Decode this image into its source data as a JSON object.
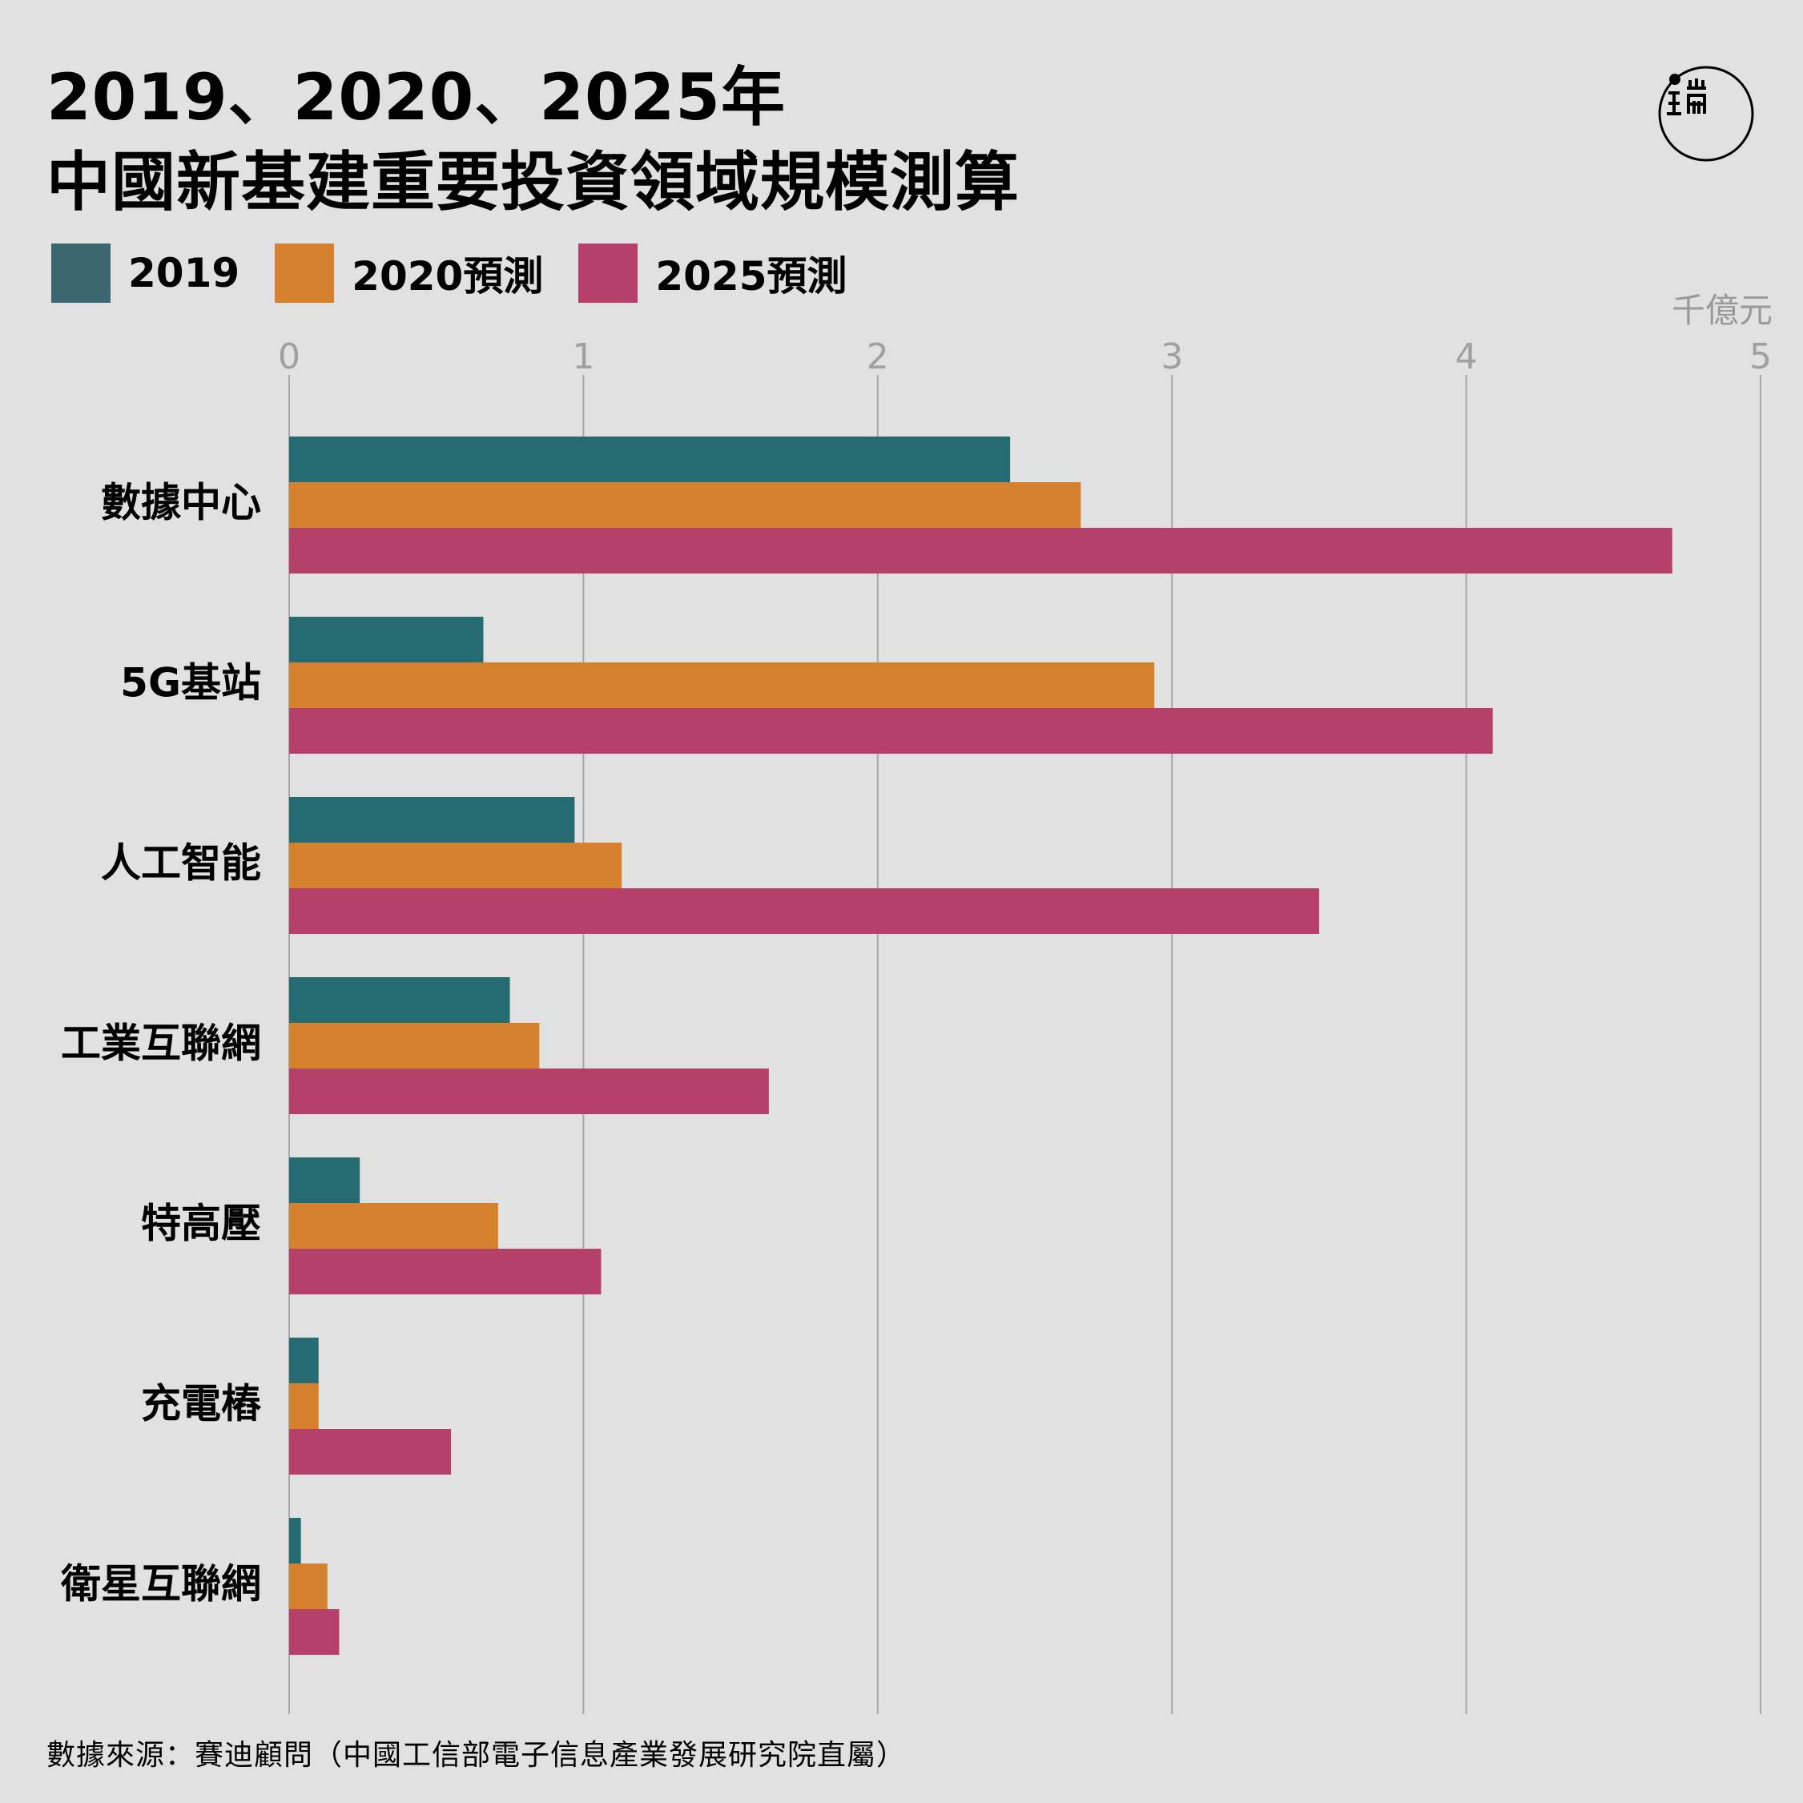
{
  "title": {
    "line1": "2019、2020、2025年",
    "line2": "中國新基建重要投資領域規模測算"
  },
  "unit": "千億元",
  "source": "數據來源：賽迪顧問（中國工信部電子信息產業發展研究院直屬）",
  "logo": {
    "name": "端"
  },
  "chart_data": {
    "type": "bar",
    "orientation": "horizontal",
    "categories": [
      "數據中心",
      "5G基站",
      "人工智能",
      "工業互聯網",
      "特高壓",
      "充電樁",
      "衛星互聯網"
    ],
    "series": [
      {
        "name": "2019",
        "color": "#276b72",
        "values": [
          2.45,
          0.66,
          0.97,
          0.75,
          0.24,
          0.1,
          0.04
        ]
      },
      {
        "name": "2020預測",
        "color": "#d6812e",
        "values": [
          2.69,
          2.94,
          1.13,
          0.85,
          0.71,
          0.1,
          0.13
        ]
      },
      {
        "name": "2025預測",
        "color": "#b5416a",
        "values": [
          4.7,
          4.09,
          3.5,
          1.63,
          1.06,
          0.55,
          0.17
        ]
      }
    ],
    "xlim": [
      0,
      5
    ],
    "xticks": [
      "0",
      "1",
      "2",
      "3",
      "4",
      "5"
    ],
    "grid": true,
    "legend_position": "top-left"
  }
}
